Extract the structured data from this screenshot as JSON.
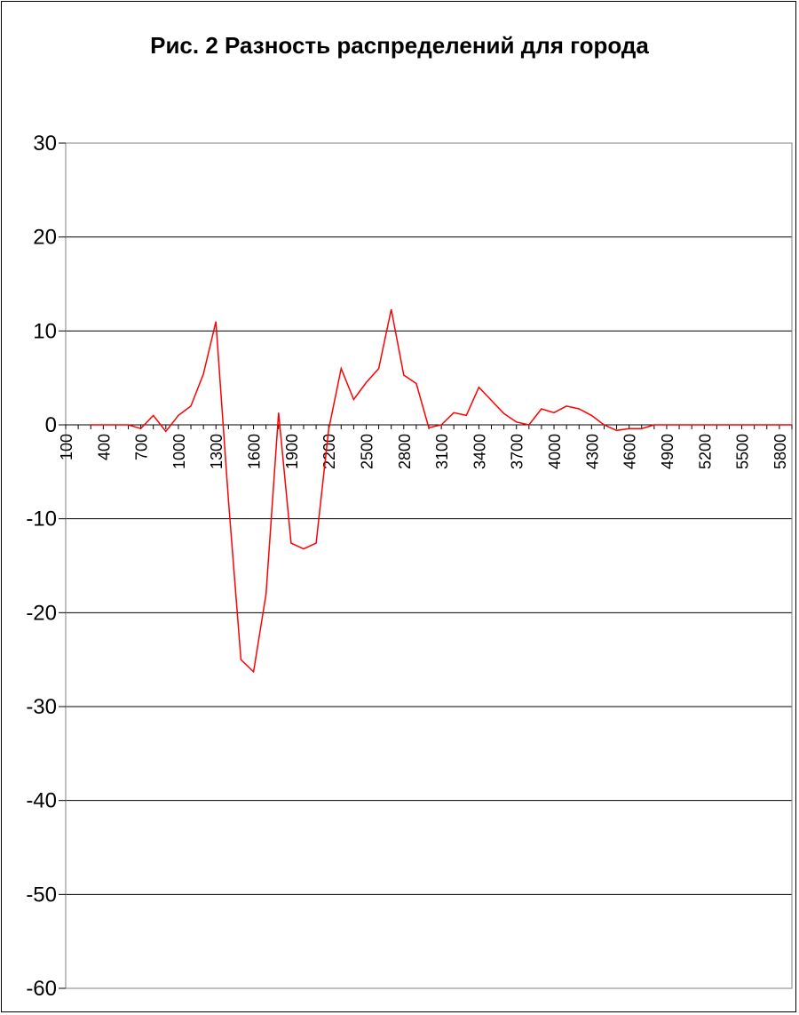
{
  "chart_data": {
    "type": "line",
    "title": "Рис. 2 Разность распределений для города",
    "xlabel": "",
    "ylabel": "",
    "ylim": [
      -60,
      30
    ],
    "yticks": [
      30,
      20,
      10,
      0,
      -10,
      -20,
      -30,
      -40,
      -50,
      -60
    ],
    "xticks": [
      100,
      400,
      700,
      1000,
      1300,
      1600,
      1900,
      2200,
      2500,
      2800,
      3100,
      3400,
      3700,
      4000,
      4300,
      4600,
      4900,
      5200,
      5500,
      5800
    ],
    "x_range": [
      100,
      5900
    ],
    "grid": true,
    "legend": "none",
    "line_color": "#ff0000",
    "series": [
      {
        "x": [
          300,
          400,
          500,
          600,
          700,
          800,
          900,
          1000,
          1100,
          1200,
          1300,
          1400,
          1500,
          1600,
          1700,
          1800,
          1900,
          2000,
          2100,
          2200,
          2300,
          2400,
          2500,
          2600,
          2700,
          2800,
          2900,
          3000,
          3100,
          3200,
          3300,
          3400,
          3500,
          3600,
          3700,
          3800,
          3900,
          4000,
          4100,
          4200,
          4300,
          4400,
          4500,
          4600,
          4700,
          4800,
          4900,
          5000,
          5100,
          5200,
          5300,
          5400,
          5500,
          5600,
          5700,
          5800,
          5900
        ],
        "values": [
          0,
          0,
          0,
          0,
          -0.4,
          1,
          -0.7,
          1,
          2,
          5.4,
          11,
          -8,
          -25,
          -26.3,
          -18,
          1.3,
          -12.6,
          -13.2,
          -12.6,
          -0.5,
          6,
          2.7,
          4.5,
          6,
          12.3,
          5.3,
          4.4,
          -0.3,
          0,
          1.3,
          1,
          4,
          2.6,
          1.2,
          0.3,
          0,
          1.7,
          1.3,
          2,
          1.7,
          1,
          0,
          -0.6,
          -0.4,
          -0.4,
          0,
          0,
          0,
          0,
          0,
          0,
          0,
          0,
          0,
          0,
          0,
          0
        ]
      }
    ]
  }
}
